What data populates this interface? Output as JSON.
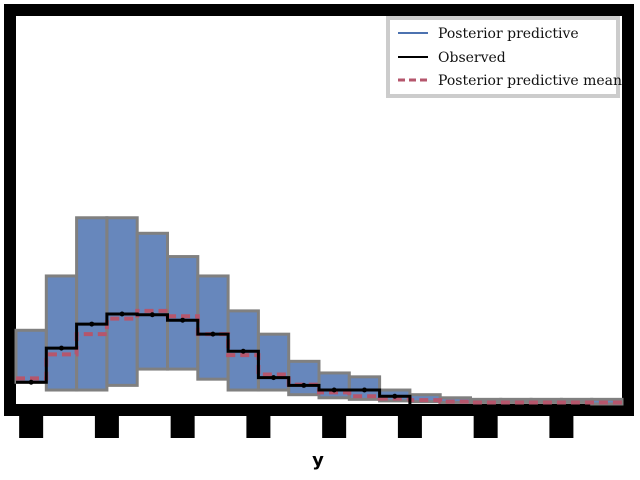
{
  "chart_data": {
    "type": "line",
    "title": "",
    "xlabel": "y",
    "ylabel": "",
    "xlim": [
      -2.4,
      13.6
    ],
    "ylim": [
      0,
      0.5
    ],
    "xticks": [
      -2,
      0,
      2,
      4,
      6,
      8,
      10,
      12
    ],
    "grid": false,
    "legend_placement": "top-right",
    "series": [
      {
        "name": "Posterior predictive",
        "color": "#4c72b0",
        "style": "step",
        "envelope_x": [
          -2.4,
          -1.6,
          -0.8,
          0.0,
          0.8,
          1.6,
          2.4,
          3.2,
          4.0,
          4.8,
          5.6,
          6.4,
          7.2,
          8.0,
          8.8,
          9.6,
          10.4,
          11.2,
          12.0,
          12.8,
          13.6
        ],
        "envelope_low": [
          0.028,
          0.018,
          0.018,
          0.024,
          0.045,
          0.045,
          0.032,
          0.018,
          0.018,
          0.012,
          0.008,
          0.006,
          0.004,
          0.003,
          0.002,
          0.002,
          0.002,
          0.002,
          0.002,
          0.0
        ],
        "envelope_high": [
          0.095,
          0.165,
          0.24,
          0.24,
          0.22,
          0.19,
          0.165,
          0.12,
          0.09,
          0.055,
          0.04,
          0.035,
          0.018,
          0.012,
          0.008,
          0.006,
          0.006,
          0.006,
          0.006,
          0.006
        ]
      },
      {
        "name": "Observed",
        "color": "#000000",
        "style": "step",
        "x": [
          -2.4,
          -1.6,
          -0.8,
          0.0,
          0.8,
          1.6,
          2.4,
          3.2,
          4.0,
          4.8,
          5.6,
          6.4,
          7.2,
          8.0
        ],
        "y": [
          0.028,
          0.072,
          0.103,
          0.116,
          0.115,
          0.108,
          0.09,
          0.068,
          0.034,
          0.024,
          0.018,
          0.018,
          0.01,
          0.0
        ]
      },
      {
        "name": "Posterior predictive mean",
        "color": "#b5566c",
        "style": "dashed-step",
        "x": [
          -2.4,
          -1.6,
          -0.8,
          0.0,
          0.8,
          1.6,
          2.4,
          3.2,
          4.0,
          4.8,
          5.6,
          6.4,
          7.2,
          8.0,
          8.8,
          9.6,
          10.4,
          11.2,
          12.0,
          12.8,
          13.6
        ],
        "y": [
          0.033,
          0.064,
          0.09,
          0.11,
          0.12,
          0.113,
          0.09,
          0.063,
          0.038,
          0.025,
          0.015,
          0.01,
          0.007,
          0.005,
          0.003,
          0.002,
          0.002,
          0.002,
          0.002,
          0.002,
          0.0
        ]
      }
    ]
  }
}
